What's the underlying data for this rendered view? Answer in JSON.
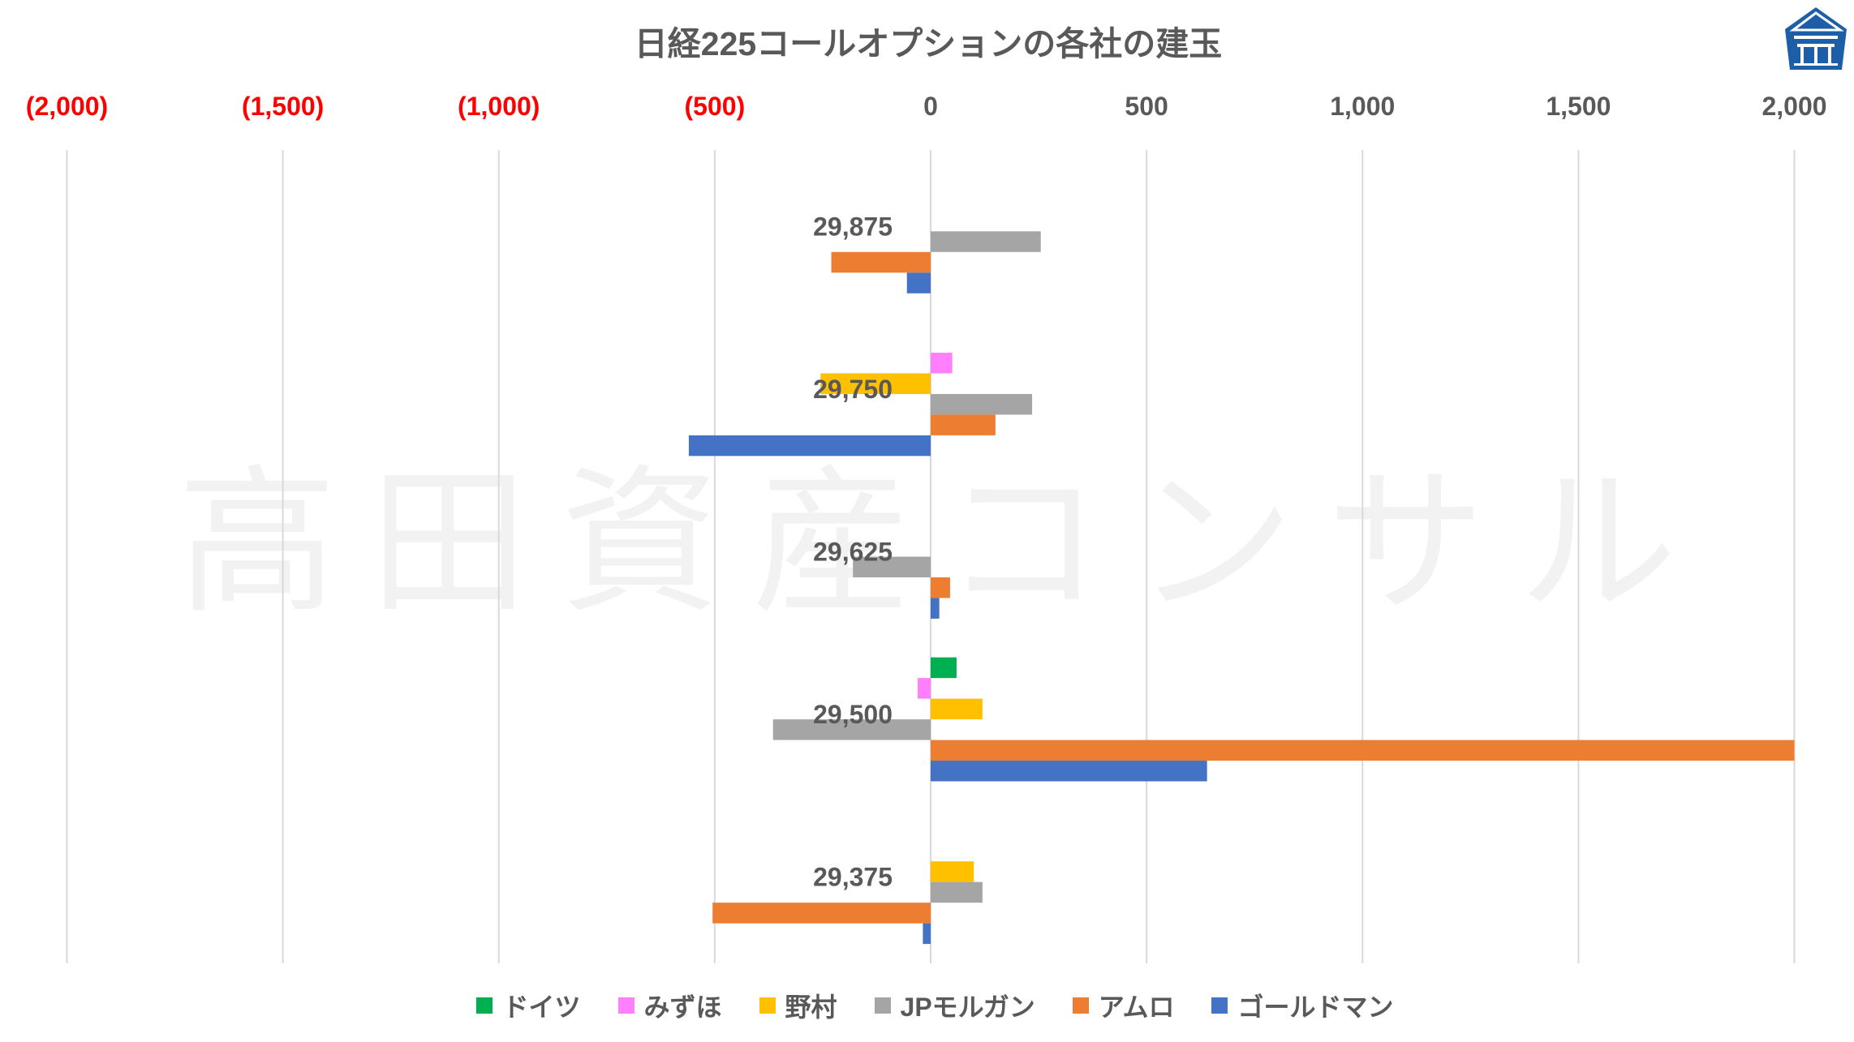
{
  "chart_data": {
    "type": "bar",
    "orientation": "horizontal",
    "title": "日経225コールオプションの各社の建玉",
    "categories": [
      "29,875",
      "29,750",
      "29,625",
      "29,500",
      "29,375"
    ],
    "series": [
      {
        "name": "ドイツ",
        "color": "#00B050",
        "values": [
          0,
          0,
          0,
          60,
          0
        ]
      },
      {
        "name": "みずほ",
        "color": "#FF7FFF",
        "values": [
          0,
          50,
          0,
          -30,
          0
        ]
      },
      {
        "name": "野村",
        "color": "#FFC000",
        "values": [
          0,
          -255,
          0,
          120,
          100
        ]
      },
      {
        "name": "JPモルガン",
        "color": "#A5A5A5",
        "values": [
          255,
          235,
          -180,
          -365,
          120
        ]
      },
      {
        "name": "アムロ",
        "color": "#ED7D31",
        "values": [
          -230,
          150,
          45,
          2000,
          -505
        ]
      },
      {
        "name": "ゴールドマン",
        "color": "#4472C4",
        "values": [
          -55,
          -560,
          20,
          640,
          -18
        ]
      }
    ],
    "xlim": [
      -2000,
      2000
    ],
    "x_ticks": [
      {
        "value": -2000,
        "label": "(2,000)"
      },
      {
        "value": -1500,
        "label": "(1,500)"
      },
      {
        "value": -1000,
        "label": "(1,000)"
      },
      {
        "value": -500,
        "label": "(500)"
      },
      {
        "value": 0,
        "label": "0"
      },
      {
        "value": 500,
        "label": "500"
      },
      {
        "value": 1000,
        "label": "1,000"
      },
      {
        "value": 1500,
        "label": "1,500"
      },
      {
        "value": 2000,
        "label": "2,000"
      }
    ],
    "x_axis_position": "top",
    "grid": "vertical",
    "legend": "bottom"
  },
  "colors": {
    "text": "#595959",
    "negative_tick": "#FF0000",
    "grid": "#D9D9D9",
    "watermark": "#F2F2F2",
    "logo": "#1C5FA8"
  },
  "watermark": "高田資産コンサル",
  "logo_icon": "building-logo-icon"
}
